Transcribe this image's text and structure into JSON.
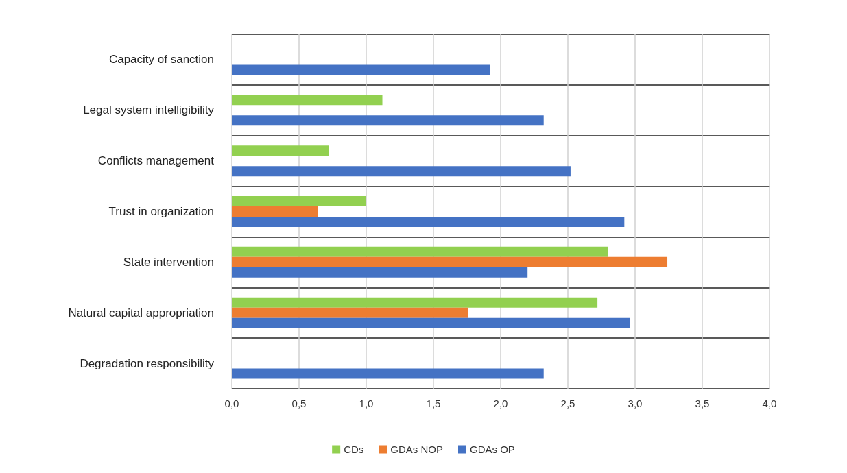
{
  "chart_data": {
    "type": "bar",
    "orientation": "horizontal",
    "categories": [
      "Capacity of sanction",
      "Legal system intelligibility",
      "Conflicts management",
      "Trust in organization",
      "State intervention",
      "Natural capital appropriation",
      "Degradation responsibility"
    ],
    "series": [
      {
        "name": "CDs",
        "color": "#92d050",
        "values": [
          null,
          1.12,
          0.72,
          1.0,
          2.8,
          2.72,
          null
        ]
      },
      {
        "name": "GDAs NOP",
        "color": "#ed7d31",
        "values": [
          null,
          null,
          null,
          0.64,
          3.24,
          1.76,
          null
        ]
      },
      {
        "name": "GDAs OP",
        "color": "#4472c4",
        "values": [
          1.92,
          2.32,
          2.52,
          2.92,
          2.2,
          2.96,
          2.32
        ]
      }
    ],
    "xlim": [
      0,
      4
    ],
    "xticks": [
      {
        "value": 0,
        "label": "0,0"
      },
      {
        "value": 0.5,
        "label": "0,5"
      },
      {
        "value": 1,
        "label": "1,0"
      },
      {
        "value": 1.5,
        "label": "1,5"
      },
      {
        "value": 2,
        "label": "2,0"
      },
      {
        "value": 2.5,
        "label": "2,5"
      },
      {
        "value": 3,
        "label": "3,0"
      },
      {
        "value": 3.5,
        "label": "3,5"
      },
      {
        "value": 4,
        "label": "4,0"
      }
    ],
    "grid": true,
    "legend": "bottom"
  }
}
